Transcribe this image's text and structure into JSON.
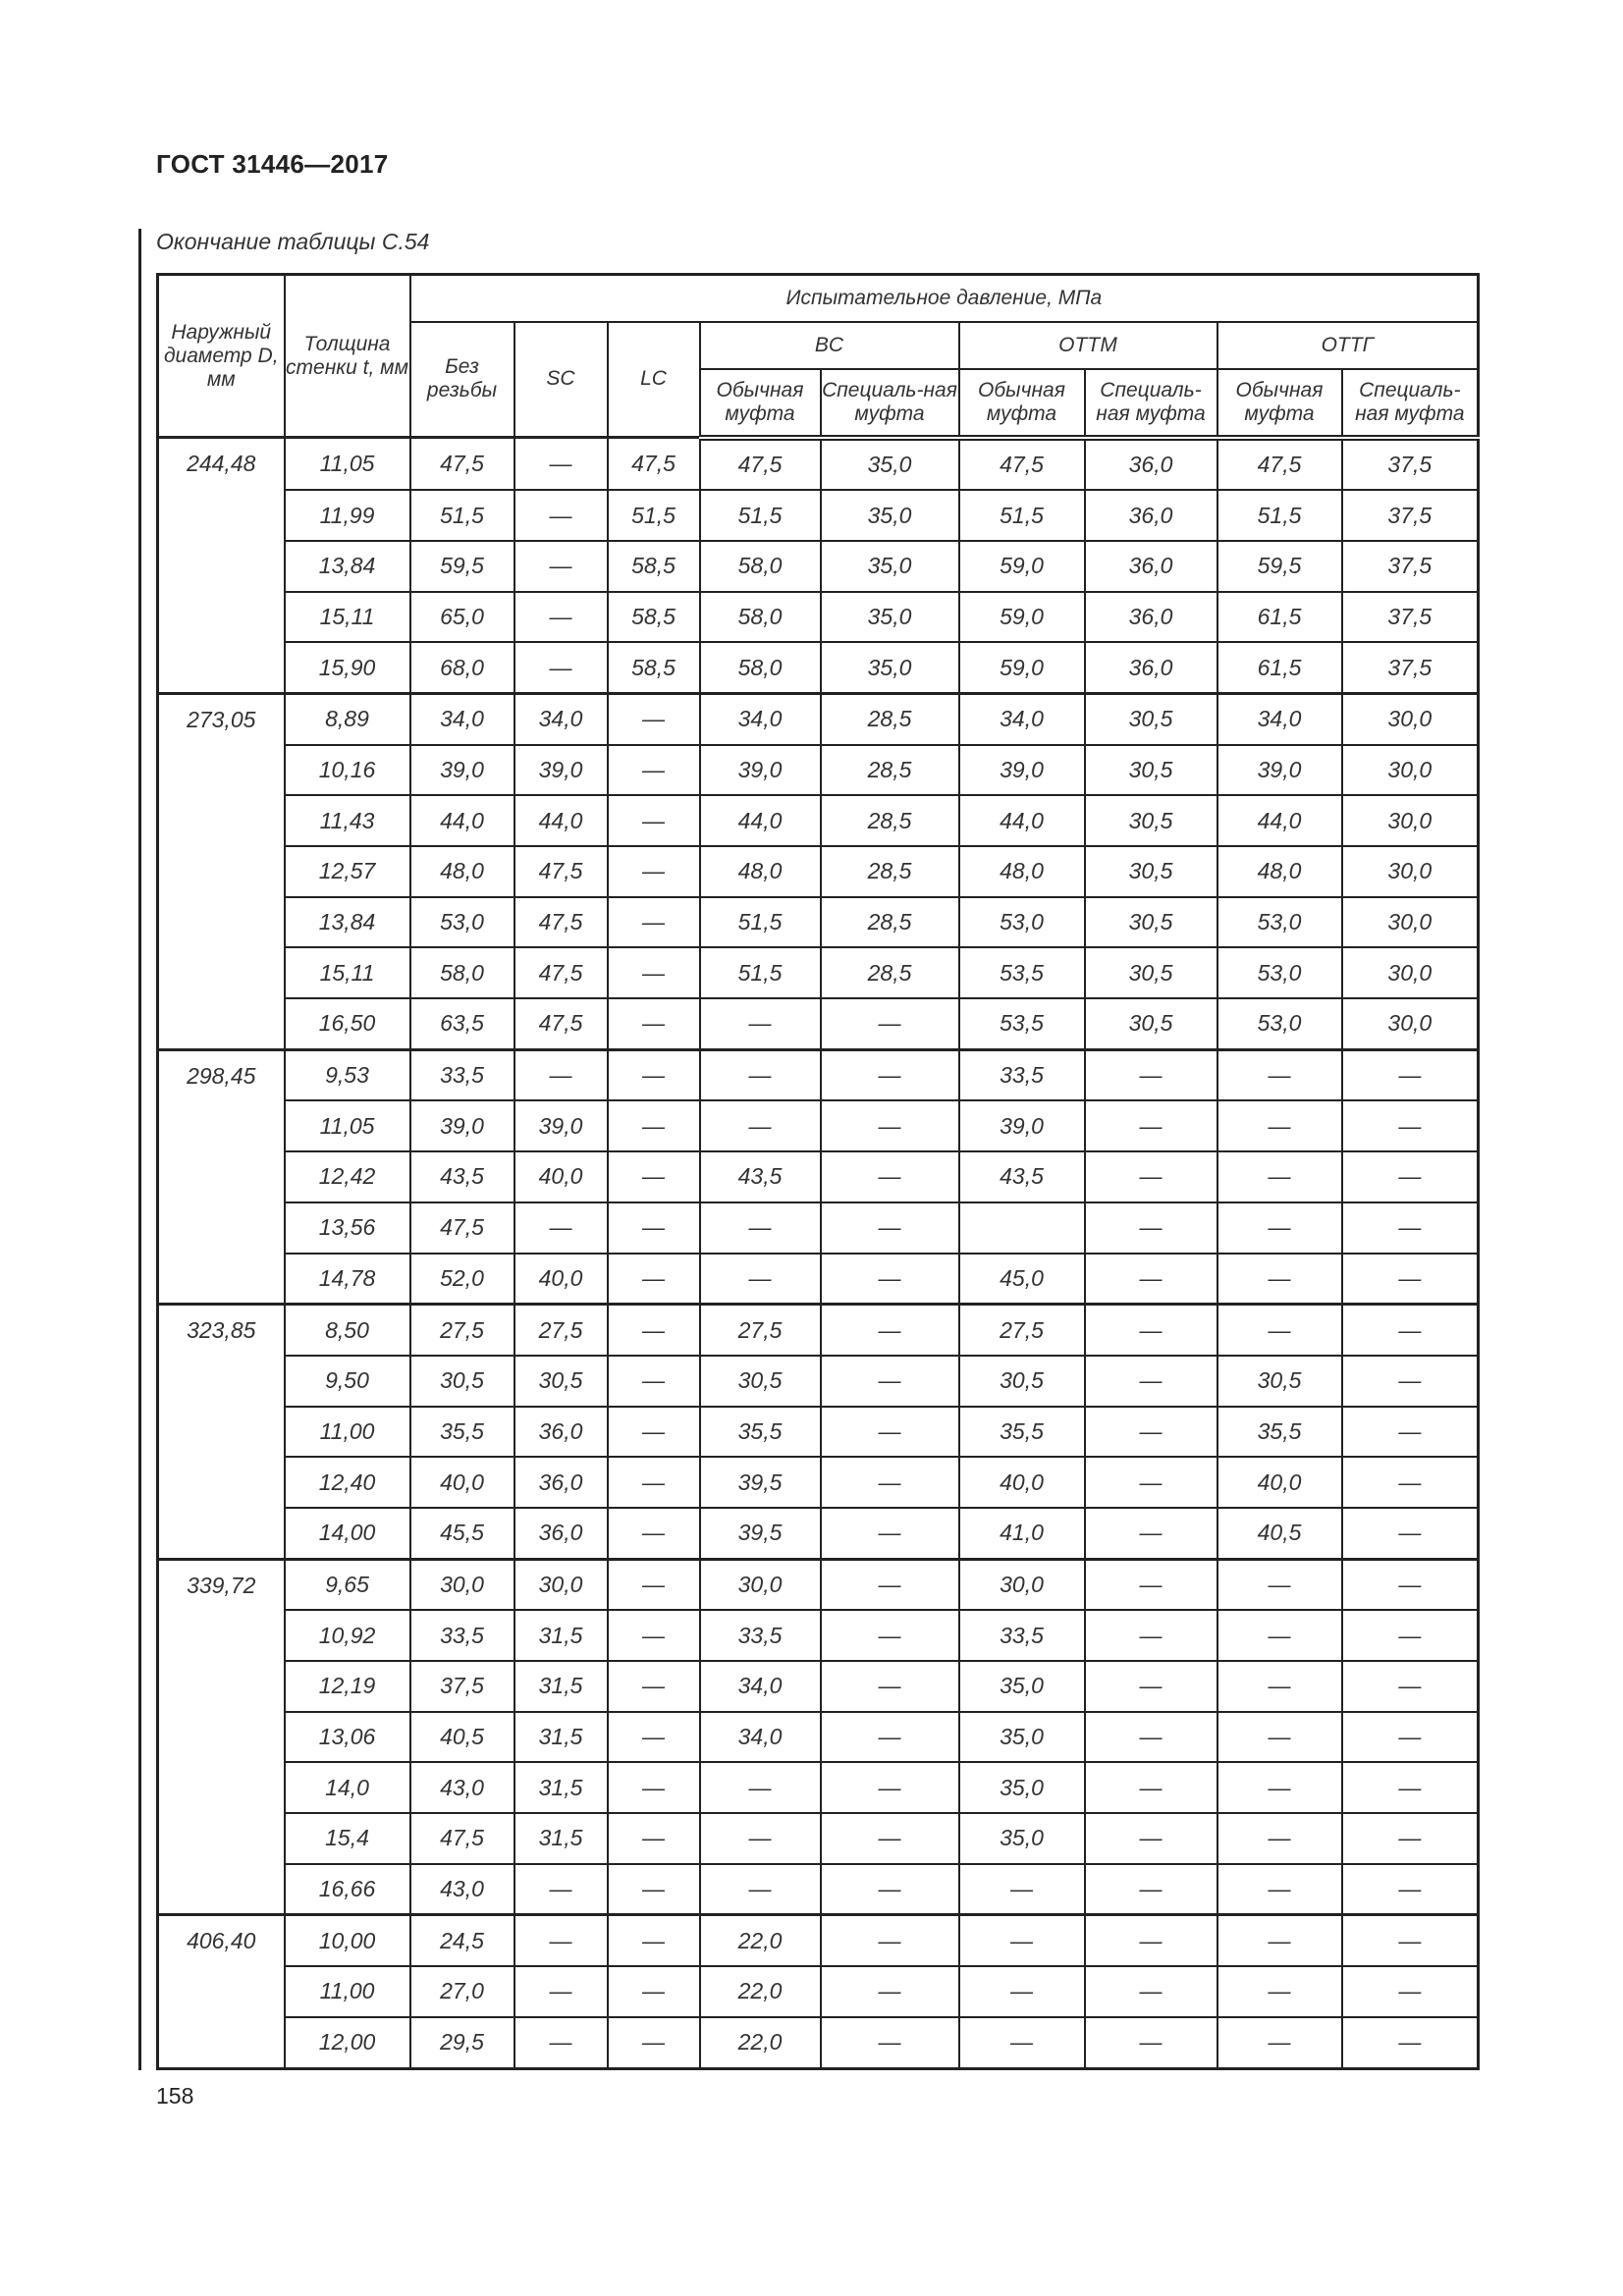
{
  "header": {
    "doc_title": "ГОСТ 31446—2017"
  },
  "caption": "Окончание таблицы С.54",
  "page_number": "158",
  "table": {
    "col_diameter": "Наружный диаметр D, мм",
    "col_thickness": "Толщина стенки t, мм",
    "group_pressure": "Испытательное давление, МПа",
    "col_no_thread": "Без резьбы",
    "col_sc": "SC",
    "col_lc": "LC",
    "group_bc": "BC",
    "group_ottm": "ОТТМ",
    "group_ottg": "ОТТГ",
    "sub_regular": "Обычная муфта",
    "sub_special": "Специаль-ная муфта",
    "groups": [
      {
        "diameter": "244,48",
        "rows": [
          [
            "11,05",
            "47,5",
            "—",
            "47,5",
            "47,5",
            "35,0",
            "47,5",
            "36,0",
            "47,5",
            "37,5"
          ],
          [
            "11,99",
            "51,5",
            "—",
            "51,5",
            "51,5",
            "35,0",
            "51,5",
            "36,0",
            "51,5",
            "37,5"
          ],
          [
            "13,84",
            "59,5",
            "—",
            "58,5",
            "58,0",
            "35,0",
            "59,0",
            "36,0",
            "59,5",
            "37,5"
          ],
          [
            "15,11",
            "65,0",
            "—",
            "58,5",
            "58,0",
            "35,0",
            "59,0",
            "36,0",
            "61,5",
            "37,5"
          ],
          [
            "15,90",
            "68,0",
            "—",
            "58,5",
            "58,0",
            "35,0",
            "59,0",
            "36,0",
            "61,5",
            "37,5"
          ]
        ]
      },
      {
        "diameter": "273,05",
        "rows": [
          [
            "8,89",
            "34,0",
            "34,0",
            "—",
            "34,0",
            "28,5",
            "34,0",
            "30,5",
            "34,0",
            "30,0"
          ],
          [
            "10,16",
            "39,0",
            "39,0",
            "—",
            "39,0",
            "28,5",
            "39,0",
            "30,5",
            "39,0",
            "30,0"
          ],
          [
            "11,43",
            "44,0",
            "44,0",
            "—",
            "44,0",
            "28,5",
            "44,0",
            "30,5",
            "44,0",
            "30,0"
          ],
          [
            "12,57",
            "48,0",
            "47,5",
            "—",
            "48,0",
            "28,5",
            "48,0",
            "30,5",
            "48,0",
            "30,0"
          ],
          [
            "13,84",
            "53,0",
            "47,5",
            "—",
            "51,5",
            "28,5",
            "53,0",
            "30,5",
            "53,0",
            "30,0"
          ],
          [
            "15,11",
            "58,0",
            "47,5",
            "—",
            "51,5",
            "28,5",
            "53,5",
            "30,5",
            "53,0",
            "30,0"
          ],
          [
            "16,50",
            "63,5",
            "47,5",
            "—",
            "—",
            "—",
            "53,5",
            "30,5",
            "53,0",
            "30,0"
          ]
        ]
      },
      {
        "diameter": "298,45",
        "rows": [
          [
            "9,53",
            "33,5",
            "—",
            "—",
            "—",
            "—",
            "33,5",
            "—",
            "—",
            "—"
          ],
          [
            "11,05",
            "39,0",
            "39,0",
            "—",
            "—",
            "—",
            "39,0",
            "—",
            "—",
            "—"
          ],
          [
            "12,42",
            "43,5",
            "40,0",
            "—",
            "43,5",
            "—",
            "43,5",
            "—",
            "—",
            "—"
          ],
          [
            "13,56",
            "47,5",
            "—",
            "—",
            "—",
            "—",
            "",
            "—",
            "—",
            "—"
          ],
          [
            "14,78",
            "52,0",
            "40,0",
            "—",
            "—",
            "—",
            "45,0",
            "—",
            "—",
            "—"
          ]
        ]
      },
      {
        "diameter": "323,85",
        "rows": [
          [
            "8,50",
            "27,5",
            "27,5",
            "—",
            "27,5",
            "—",
            "27,5",
            "—",
            "—",
            "—"
          ],
          [
            "9,50",
            "30,5",
            "30,5",
            "—",
            "30,5",
            "—",
            "30,5",
            "—",
            "30,5",
            "—"
          ],
          [
            "11,00",
            "35,5",
            "36,0",
            "—",
            "35,5",
            "—",
            "35,5",
            "—",
            "35,5",
            "—"
          ],
          [
            "12,40",
            "40,0",
            "36,0",
            "—",
            "39,5",
            "—",
            "40,0",
            "—",
            "40,0",
            "—"
          ],
          [
            "14,00",
            "45,5",
            "36,0",
            "—",
            "39,5",
            "—",
            "41,0",
            "—",
            "40,5",
            "—"
          ]
        ]
      },
      {
        "diameter": "339,72",
        "rows": [
          [
            "9,65",
            "30,0",
            "30,0",
            "—",
            "30,0",
            "—",
            "30,0",
            "—",
            "—",
            "—"
          ],
          [
            "10,92",
            "33,5",
            "31,5",
            "—",
            "33,5",
            "—",
            "33,5",
            "—",
            "—",
            "—"
          ],
          [
            "12,19",
            "37,5",
            "31,5",
            "—",
            "34,0",
            "—",
            "35,0",
            "—",
            "—",
            "—"
          ],
          [
            "13,06",
            "40,5",
            "31,5",
            "—",
            "34,0",
            "—",
            "35,0",
            "—",
            "—",
            "—"
          ],
          [
            "14,0",
            "43,0",
            "31,5",
            "—",
            "—",
            "—",
            "35,0",
            "—",
            "—",
            "—"
          ],
          [
            "15,4",
            "47,5",
            "31,5",
            "—",
            "—",
            "—",
            "35,0",
            "—",
            "—",
            "—"
          ],
          [
            "16,66",
            "43,0",
            "—",
            "—",
            "—",
            "—",
            "—",
            "—",
            "—",
            "—"
          ]
        ]
      },
      {
        "diameter": "406,40",
        "rows": [
          [
            "10,00",
            "24,5",
            "—",
            "—",
            "22,0",
            "—",
            "—",
            "—",
            "—",
            "—"
          ],
          [
            "11,00",
            "27,0",
            "—",
            "—",
            "22,0",
            "—",
            "—",
            "—",
            "—",
            "—"
          ],
          [
            "12,00",
            "29,5",
            "—",
            "—",
            "22,0",
            "—",
            "—",
            "—",
            "—",
            "—"
          ]
        ]
      }
    ]
  }
}
